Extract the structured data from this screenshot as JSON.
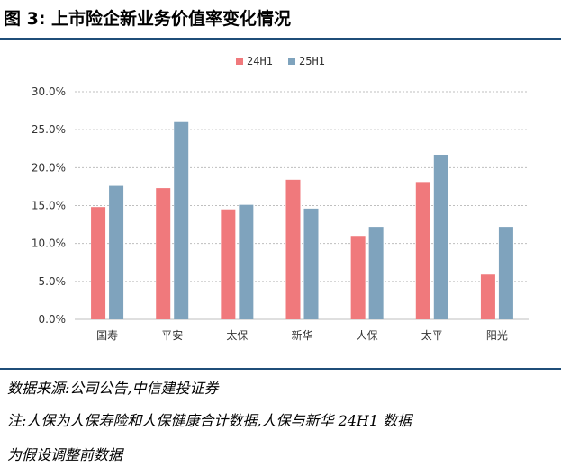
{
  "figure": {
    "title": "图 3:  上市险企新业务价值率变化情况",
    "source": "数据来源:公司公告,中信建投证券",
    "note_line1": "注:人保为人保寿险和人保健康合计数据,人保与新华 24H1 数据",
    "note_line2": "为假设调整前数据"
  },
  "colors": {
    "series1": "#f0797c",
    "series2": "#7fa3bd",
    "grid": "#bfbfbf",
    "rule": "#1f4e79"
  },
  "chart_data": {
    "type": "bar",
    "title": "",
    "xlabel": "",
    "ylabel": "",
    "categories": [
      "国寿",
      "平安",
      "太保",
      "新华",
      "人保",
      "太平",
      "阳光"
    ],
    "series": [
      {
        "name": "24H1",
        "values": [
          14.8,
          17.3,
          14.5,
          18.4,
          11.0,
          18.1,
          5.9
        ]
      },
      {
        "name": "25H1",
        "values": [
          17.6,
          26.0,
          15.1,
          14.6,
          12.2,
          21.7,
          12.2
        ]
      }
    ],
    "ylim": [
      0,
      30
    ],
    "yticks": [
      0,
      5,
      10,
      15,
      20,
      25,
      30
    ],
    "ytick_labels": [
      "0.0%",
      "5.0%",
      "10.0%",
      "15.0%",
      "20.0%",
      "25.0%",
      "30.0%"
    ],
    "grid": true,
    "legend_position": "top-center"
  }
}
